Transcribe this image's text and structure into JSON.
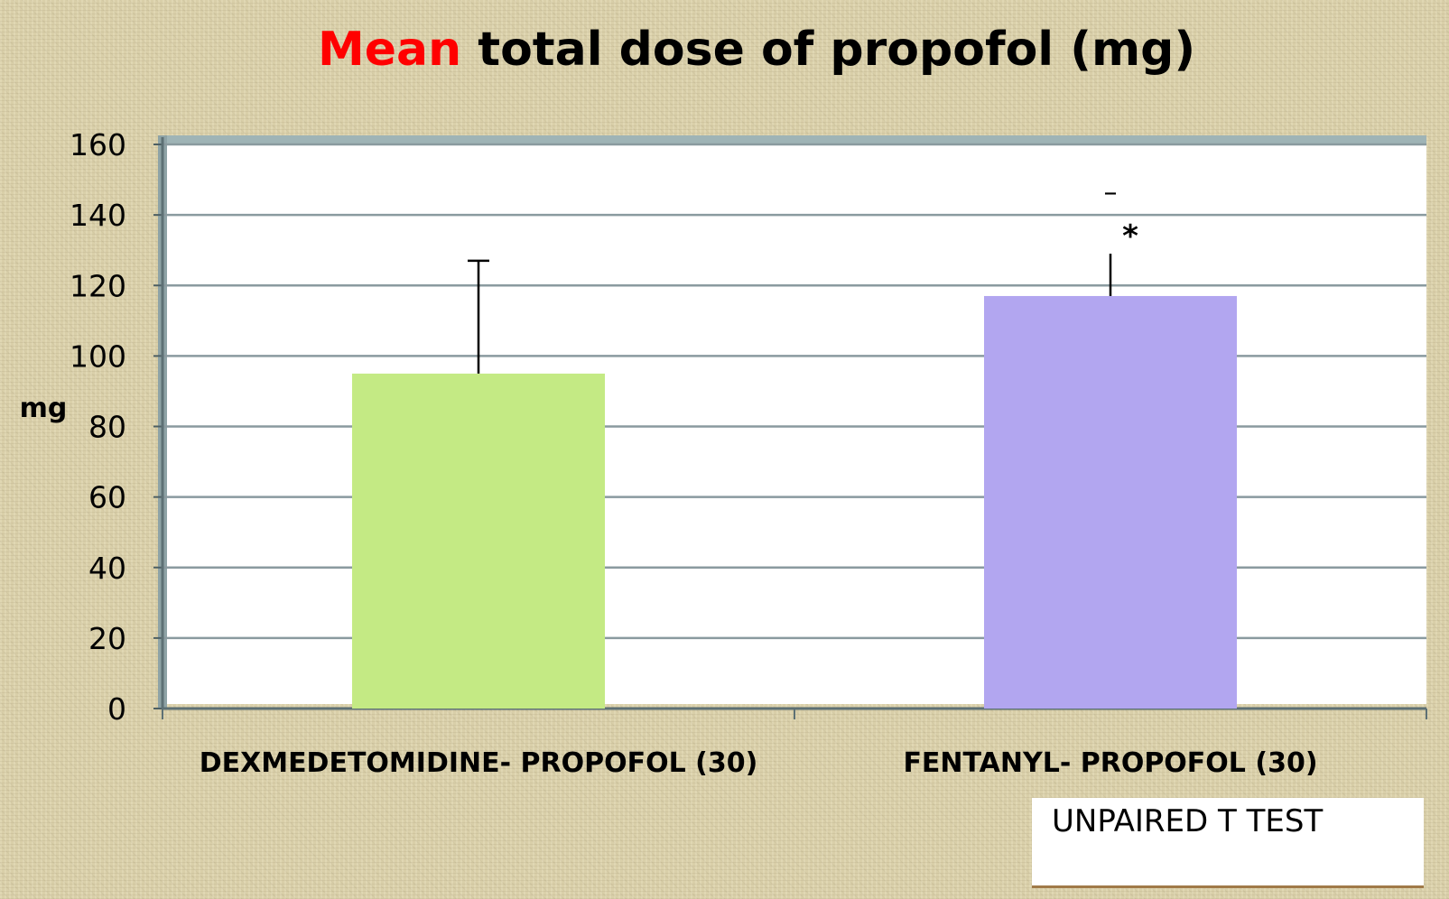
{
  "chart_data": {
    "type": "bar",
    "title": "Mean total dose of propofol (mg)",
    "title_highlight": "Mean",
    "title_rest": " total dose of propofol (mg)",
    "ylabel": "mg",
    "xlabel": "",
    "ylim": [
      0,
      160
    ],
    "yticks": [
      0,
      20,
      40,
      60,
      80,
      100,
      120,
      140,
      160
    ],
    "grid": true,
    "categories": [
      "DEXMEDETOMIDINE- PROPOFOL (30)",
      "FENTANYL- PROPOFOL (30)"
    ],
    "values": [
      95,
      117
    ],
    "error_upper": [
      127,
      129
    ],
    "bar_colors": [
      "#c4ea84",
      "#b2a6f0"
    ],
    "annotations": [
      {
        "category": "FENTANYL- PROPOFOL (30)",
        "text": "*"
      }
    ],
    "annotation_dash": "–",
    "note": "UNPAIRED T TEST"
  },
  "colors": {
    "highlight": "#ff0000",
    "grid": "#8a9a9f",
    "plot_bg": "#ffffff",
    "frame": "#7f9598"
  }
}
